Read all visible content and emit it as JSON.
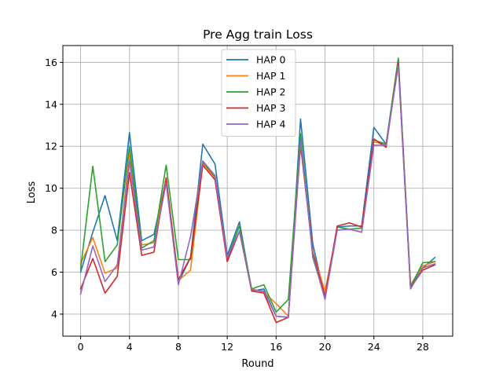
{
  "chart_data": {
    "type": "line",
    "title": "Pre Agg train Loss",
    "xlabel": "Round",
    "ylabel": "Loss",
    "xlim": [
      -1.45,
      30.45
    ],
    "ylim": [
      2.95,
      16.8
    ],
    "xticks": [
      0,
      4,
      8,
      12,
      16,
      20,
      24,
      28
    ],
    "yticks": [
      4,
      6,
      8,
      10,
      12,
      14,
      16
    ],
    "grid": true,
    "legend_position": "top-center",
    "x": [
      0,
      1,
      2,
      3,
      4,
      5,
      6,
      7,
      8,
      9,
      10,
      11,
      12,
      13,
      14,
      15,
      16,
      17,
      18,
      19,
      20,
      21,
      22,
      23,
      24,
      25,
      26,
      27,
      28,
      29
    ],
    "series": [
      {
        "name": "HAP 0",
        "color": "#1f77b4",
        "values": [
          6.0,
          7.9,
          9.65,
          7.5,
          12.65,
          7.5,
          7.8,
          10.4,
          5.5,
          6.7,
          12.1,
          11.15,
          6.8,
          8.4,
          5.1,
          5.2,
          3.9,
          3.85,
          13.3,
          7.35,
          4.8,
          8.15,
          8.2,
          8.2,
          12.9,
          12.1,
          16.15,
          5.35,
          6.2,
          6.7
        ]
      },
      {
        "name": "HAP 1",
        "color": "#ff7f0e",
        "values": [
          6.4,
          7.65,
          5.95,
          6.2,
          11.6,
          7.3,
          7.4,
          10.45,
          5.6,
          6.1,
          11.2,
          10.5,
          6.6,
          7.95,
          5.2,
          5.05,
          4.5,
          3.9,
          12.4,
          6.95,
          5.1,
          8.0,
          8.05,
          7.9,
          12.2,
          12.1,
          16.05,
          5.4,
          6.3,
          6.5
        ]
      },
      {
        "name": "HAP 2",
        "color": "#2ca02c",
        "values": [
          6.15,
          11.05,
          6.5,
          7.3,
          12.0,
          7.15,
          7.5,
          11.1,
          6.6,
          6.6,
          11.25,
          10.55,
          6.65,
          8.2,
          5.2,
          5.4,
          4.1,
          4.7,
          12.6,
          6.7,
          4.8,
          8.15,
          8.05,
          8.1,
          12.3,
          12.1,
          16.2,
          5.3,
          6.45,
          6.5
        ]
      },
      {
        "name": "HAP 3",
        "color": "#d62728",
        "values": [
          5.2,
          6.65,
          5.0,
          5.8,
          10.75,
          6.8,
          6.95,
          10.5,
          5.65,
          6.7,
          11.1,
          10.4,
          6.5,
          7.95,
          5.1,
          5.0,
          3.6,
          3.85,
          12.05,
          6.95,
          4.85,
          8.2,
          8.35,
          8.15,
          12.35,
          11.95,
          15.95,
          5.25,
          6.1,
          6.35
        ]
      },
      {
        "name": "HAP 4",
        "color": "#9467bd",
        "values": [
          4.95,
          7.25,
          5.55,
          6.35,
          11.3,
          7.05,
          7.2,
          10.25,
          5.4,
          7.7,
          11.3,
          10.6,
          6.7,
          7.95,
          5.15,
          5.1,
          3.9,
          3.85,
          12.25,
          6.8,
          4.7,
          8.0,
          8.05,
          7.9,
          12.05,
          12.05,
          15.85,
          5.2,
          6.2,
          6.4
        ]
      }
    ]
  }
}
